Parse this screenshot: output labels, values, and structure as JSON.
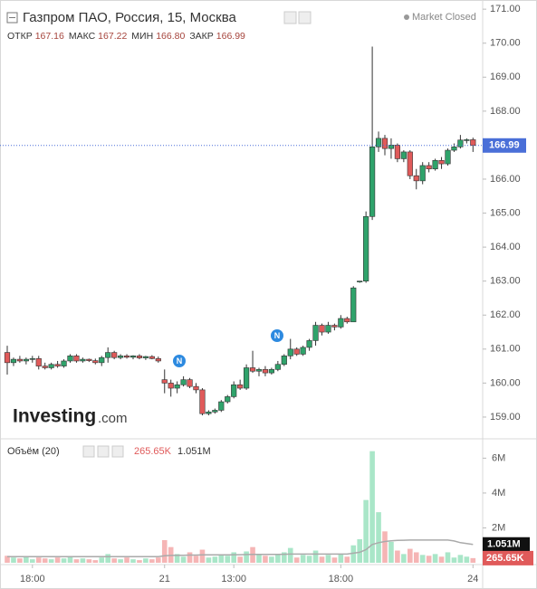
{
  "header": {
    "title": "Газпром ПАО, Россия, 15, Москва",
    "status": "Market Closed",
    "ohlc": [
      {
        "label": "ОТКР",
        "value": "167.16"
      },
      {
        "label": "МАКС",
        "value": "167.22"
      },
      {
        "label": "МИН",
        "value": "166.80"
      },
      {
        "label": "ЗАКР",
        "value": "166.99"
      }
    ]
  },
  "watermark": [
    "Investing",
    ".com"
  ],
  "markers": [
    "N",
    "N"
  ],
  "chart_data": {
    "type": "candlestick",
    "categories": [
      null,
      null,
      null,
      null,
      "18:00",
      null,
      null,
      null,
      null,
      null,
      null,
      null,
      null,
      null,
      null,
      null,
      null,
      null,
      null,
      null,
      null,
      null,
      null,
      null,
      null,
      "21",
      null,
      null,
      null,
      null,
      null,
      null,
      null,
      null,
      null,
      null,
      "13:00",
      null,
      null,
      null,
      null,
      null,
      null,
      null,
      null,
      null,
      null,
      null,
      null,
      null,
      null,
      null,
      null,
      "18:00",
      null,
      null,
      null,
      null,
      null,
      null,
      null,
      null,
      null,
      null,
      null,
      null,
      null,
      null,
      null,
      null,
      null,
      null,
      null,
      null,
      "24"
    ],
    "open": [
      160.9,
      160.6,
      160.7,
      160.65,
      160.7,
      160.72,
      160.5,
      160.45,
      160.55,
      160.5,
      160.65,
      160.8,
      160.65,
      160.7,
      160.66,
      160.6,
      160.75,
      160.9,
      160.75,
      160.8,
      160.76,
      160.8,
      160.74,
      160.78,
      160.72,
      160.1,
      160.0,
      159.85,
      159.95,
      160.1,
      159.9,
      159.8,
      159.1,
      159.15,
      159.2,
      159.45,
      159.6,
      159.95,
      159.85,
      160.45,
      160.35,
      160.4,
      160.3,
      160.4,
      160.55,
      160.8,
      161.0,
      160.85,
      161.05,
      161.25,
      161.7,
      161.5,
      161.7,
      161.65,
      161.9,
      161.8,
      162.98,
      163.0,
      164.9,
      166.95,
      167.2,
      166.9,
      167.0,
      166.6,
      166.8,
      166.1,
      165.95,
      166.4,
      166.3,
      166.55,
      166.45,
      166.85,
      166.95,
      167.15,
      167.16
    ],
    "high": [
      161.1,
      160.75,
      160.8,
      160.75,
      160.8,
      160.8,
      160.6,
      160.6,
      160.65,
      160.7,
      160.85,
      160.85,
      160.75,
      160.72,
      160.72,
      160.8,
      161.05,
      160.95,
      160.85,
      160.85,
      160.82,
      160.85,
      160.8,
      160.82,
      160.78,
      160.4,
      160.1,
      160.05,
      160.2,
      160.15,
      160.0,
      159.85,
      159.2,
      159.25,
      159.5,
      159.65,
      160.05,
      160.1,
      160.55,
      160.95,
      160.45,
      160.5,
      160.45,
      160.65,
      160.85,
      161.3,
      161.05,
      161.1,
      161.3,
      161.8,
      161.75,
      161.8,
      161.75,
      162.0,
      161.95,
      162.85,
      163.0,
      165.05,
      169.9,
      167.4,
      167.3,
      167.2,
      167.05,
      166.85,
      166.85,
      166.3,
      166.5,
      166.5,
      166.6,
      166.65,
      166.9,
      167.05,
      167.3,
      167.2,
      167.22
    ],
    "low": [
      160.25,
      160.5,
      160.6,
      160.55,
      160.6,
      160.4,
      160.4,
      160.4,
      160.45,
      160.45,
      160.6,
      160.6,
      160.6,
      160.62,
      160.55,
      160.5,
      160.6,
      160.7,
      160.7,
      160.72,
      160.7,
      160.7,
      160.68,
      160.7,
      160.6,
      159.7,
      159.6,
      159.7,
      159.9,
      159.85,
      159.7,
      159.05,
      159.05,
      159.1,
      159.15,
      159.4,
      159.55,
      159.8,
      159.8,
      160.3,
      160.2,
      160.2,
      160.25,
      160.35,
      160.5,
      160.7,
      160.8,
      160.8,
      160.95,
      161.1,
      161.4,
      161.45,
      161.55,
      161.6,
      161.75,
      161.8,
      162.95,
      162.95,
      164.8,
      166.8,
      166.7,
      166.6,
      166.5,
      166.5,
      166.0,
      165.7,
      165.85,
      166.2,
      166.25,
      166.3,
      166.4,
      166.8,
      166.9,
      167.05,
      166.8
    ],
    "close": [
      160.6,
      160.7,
      160.65,
      160.7,
      160.72,
      160.5,
      160.45,
      160.55,
      160.5,
      160.65,
      160.8,
      160.65,
      160.7,
      160.66,
      160.6,
      160.75,
      160.9,
      160.75,
      160.8,
      160.76,
      160.8,
      160.74,
      160.78,
      160.72,
      160.65,
      160.0,
      159.85,
      159.95,
      160.1,
      159.9,
      159.8,
      159.1,
      159.15,
      159.2,
      159.45,
      159.6,
      159.95,
      159.85,
      160.45,
      160.35,
      160.4,
      160.3,
      160.4,
      160.55,
      160.8,
      161.0,
      160.85,
      161.05,
      161.25,
      161.7,
      161.5,
      161.7,
      161.65,
      161.9,
      161.8,
      162.8,
      163.0,
      164.9,
      166.95,
      167.2,
      166.9,
      167.0,
      166.6,
      166.8,
      166.1,
      165.95,
      166.4,
      166.3,
      166.55,
      166.45,
      166.85,
      166.95,
      167.15,
      167.16,
      166.99
    ],
    "up_color": "#2fa36b",
    "down_color": "#e05a5a",
    "ylim": [
      158.36,
      171.27
    ],
    "yticks": [
      {
        "value": 159,
        "label": "159.00"
      },
      {
        "value": 160,
        "label": "160.00"
      },
      {
        "value": 161,
        "label": "161.00"
      },
      {
        "value": 162,
        "label": "162.00"
      },
      {
        "value": 163,
        "label": "163.00"
      },
      {
        "value": 164,
        "label": "164.00"
      },
      {
        "value": 165,
        "label": "165.00"
      },
      {
        "value": 166,
        "label": "166.00"
      },
      {
        "value": 167,
        "label": "167.00"
      },
      {
        "value": 168,
        "label": "168.00"
      },
      {
        "value": 169,
        "label": "169.00"
      },
      {
        "value": 170,
        "label": "170.00"
      },
      {
        "value": 171,
        "label": "171.00"
      }
    ],
    "last_price": 166.99,
    "last_price_color": "#4a6fd8",
    "grid": false,
    "volume": {
      "title": "Объём (20)",
      "values": [
        400000,
        300000,
        250000,
        350000,
        200000,
        300000,
        250000,
        200000,
        300000,
        250000,
        350000,
        200000,
        250000,
        200000,
        150000,
        300000,
        500000,
        250000,
        200000,
        300000,
        200000,
        150000,
        250000,
        200000,
        300000,
        1300000,
        900000,
        500000,
        350000,
        600000,
        400000,
        750000,
        300000,
        350000,
        450000,
        400000,
        600000,
        350000,
        650000,
        900000,
        450000,
        400000,
        350000,
        500000,
        600000,
        850000,
        300000,
        450000,
        400000,
        700000,
        350000,
        450000,
        300000,
        500000,
        350000,
        1000000,
        1350000,
        3600000,
        6400000,
        2900000,
        1800000,
        1200000,
        700000,
        500000,
        800000,
        600000,
        450000,
        400000,
        500000,
        350000,
        600000,
        300000,
        450000,
        350000,
        265650
      ],
      "value_labels": [
        null,
        null,
        null,
        null,
        null,
        null,
        null,
        null,
        null,
        null,
        null,
        null,
        null,
        null,
        null,
        null,
        null,
        null,
        null,
        null,
        null,
        null,
        null,
        null,
        null,
        null,
        null,
        null,
        null,
        null,
        null,
        null,
        null,
        null,
        null,
        null,
        null,
        null,
        null,
        null,
        null,
        null,
        null,
        null,
        null,
        null,
        null,
        null,
        null,
        null,
        null,
        null,
        null,
        null,
        null,
        null,
        null,
        null,
        null,
        null,
        null,
        null,
        null,
        null,
        null,
        null,
        null,
        null,
        null,
        null,
        null,
        null,
        null,
        null,
        "265.65K"
      ],
      "up_color": "#a9e6c8",
      "down_color": "#f5b5b5",
      "label_color": "#e05a5a",
      "ma": {
        "color": "#aaaaaa",
        "values": [
          350000,
          350000,
          350000,
          350000,
          350000,
          350000,
          350000,
          350000,
          350000,
          350000,
          350000,
          350000,
          350000,
          350000,
          350000,
          350000,
          350000,
          350000,
          350000,
          350000,
          350000,
          350000,
          350000,
          350000,
          350000,
          400000,
          420000,
          430000,
          430000,
          440000,
          440000,
          450000,
          450000,
          450000,
          450000,
          450000,
          460000,
          460000,
          470000,
          480000,
          480000,
          480000,
          480000,
          480000,
          490000,
          500000,
          500000,
          500000,
          500000,
          500000,
          500000,
          500000,
          500000,
          500000,
          500000,
          550000,
          600000,
          750000,
          1050000,
          1150000,
          1220000,
          1260000,
          1280000,
          1290000,
          1300000,
          1300000,
          1300000,
          1300000,
          1300000,
          1300000,
          1300000,
          1250000,
          1150000,
          1100000,
          1051000
        ],
        "value_labels": [
          null,
          null,
          null,
          null,
          null,
          null,
          null,
          null,
          null,
          null,
          null,
          null,
          null,
          null,
          null,
          null,
          null,
          null,
          null,
          null,
          null,
          null,
          null,
          null,
          null,
          null,
          null,
          null,
          null,
          null,
          null,
          null,
          null,
          null,
          null,
          null,
          null,
          null,
          null,
          null,
          null,
          null,
          null,
          null,
          null,
          null,
          null,
          null,
          null,
          null,
          null,
          null,
          null,
          null,
          null,
          null,
          null,
          null,
          null,
          null,
          null,
          null,
          null,
          null,
          null,
          null,
          null,
          null,
          null,
          null,
          null,
          null,
          null,
          null,
          "1.051M"
        ]
      },
      "ylim": [
        0,
        6850000
      ],
      "yticks": [
        {
          "value": 2000000,
          "label": "2M"
        },
        {
          "value": 4000000,
          "label": "4M"
        },
        {
          "value": 6000000,
          "label": "6M"
        }
      ]
    }
  }
}
